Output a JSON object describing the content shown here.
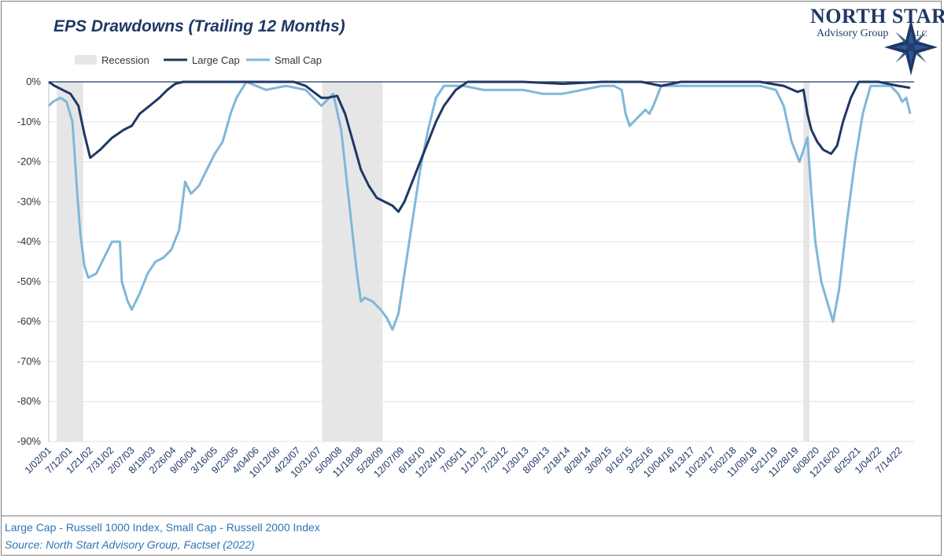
{
  "brand": {
    "logo_name": "NORTH STAR",
    "logo_sub": "Advisory Group",
    "logo_suffix": "LLC",
    "colors": {
      "navy": "#1f3864",
      "light_blue": "#7fb7d9",
      "recession_gray": "#e6e6e6",
      "footnote_blue": "#2e75b6"
    },
    "icon": "compass-star-icon"
  },
  "footnotes": {
    "line1": "Large Cap - Russell 1000 Index, Small Cap - Russell 2000 Index",
    "line2": "Source: North Start Advisory Group, Factset (2022)"
  },
  "chart_data": {
    "type": "line",
    "title": "EPS Drawdowns (Trailing 12 Months)",
    "xlabel": "",
    "ylabel": "",
    "ylim": [
      -90,
      0
    ],
    "yticks": [
      0,
      -10,
      -20,
      -30,
      -40,
      -50,
      -60,
      -70,
      -80,
      -90
    ],
    "ytick_labels": [
      "0%",
      "-10%",
      "-20%",
      "-30%",
      "-40%",
      "-50%",
      "-60%",
      "-70%",
      "-80%",
      "-90%"
    ],
    "xlim": [
      2001.0,
      2022.9
    ],
    "xtick_labels": [
      "1/02/01",
      "7/12/01",
      "1/21/02",
      "7/31/02",
      "2/07/03",
      "8/19/03",
      "2/26/04",
      "9/06/04",
      "3/16/05",
      "9/23/05",
      "4/04/06",
      "10/12/06",
      "4/23/07",
      "10/31/07",
      "5/09/08",
      "11/18/08",
      "5/28/09",
      "12/07/09",
      "6/16/10",
      "12/24/10",
      "7/05/11",
      "1/12/12",
      "7/23/12",
      "1/30/13",
      "8/09/13",
      "2/18/14",
      "8/28/14",
      "3/09/15",
      "9/16/15",
      "3/25/16",
      "10/04/16",
      "4/13/17",
      "10/23/17",
      "5/02/18",
      "11/09/18",
      "5/21/19",
      "11/28/19",
      "6/08/20",
      "12/16/20",
      "6/25/21",
      "1/04/22",
      "7/14/22"
    ],
    "grid": true,
    "legend_position": "top-left",
    "legend": [
      "Recession",
      "Large Cap",
      "Small Cap"
    ],
    "recessions": [
      [
        2001.2,
        2001.87
      ],
      [
        2007.92,
        2009.45
      ],
      [
        2020.1,
        2020.25
      ]
    ],
    "series": [
      {
        "name": "Large Cap",
        "color": "#1f3864",
        "x": [
          2001.0,
          2001.15,
          2001.35,
          2001.55,
          2001.75,
          2001.9,
          2002.05,
          2002.3,
          2002.6,
          2002.9,
          2003.1,
          2003.3,
          2003.55,
          2003.8,
          2004.0,
          2004.2,
          2004.4,
          2005.0,
          2006.0,
          2006.8,
          2007.2,
          2007.5,
          2007.7,
          2007.9,
          2008.05,
          2008.3,
          2008.5,
          2008.7,
          2008.9,
          2009.1,
          2009.3,
          2009.5,
          2009.7,
          2009.85,
          2010.0,
          2010.2,
          2010.4,
          2010.6,
          2010.8,
          2011.0,
          2011.3,
          2011.6,
          2012.0,
          2013.0,
          2014.0,
          2015.0,
          2015.5,
          2016.0,
          2016.5,
          2017.0,
          2018.0,
          2019.0,
          2019.6,
          2019.95,
          2020.1,
          2020.2,
          2020.3,
          2020.45,
          2020.6,
          2020.8,
          2020.95,
          2021.1,
          2021.3,
          2021.5,
          2021.7,
          2022.0,
          2022.5,
          2022.8
        ],
        "y": [
          0,
          -1,
          -2,
          -3,
          -6,
          -13,
          -19,
          -17,
          -14,
          -12,
          -11,
          -8,
          -6,
          -4,
          -2,
          -0.5,
          0,
          0,
          0,
          0,
          0,
          -1,
          -2.5,
          -4,
          -4,
          -3.5,
          -8,
          -15,
          -22,
          -26,
          -29,
          -30,
          -31,
          -32.5,
          -30,
          -25,
          -20,
          -15,
          -10,
          -6,
          -2,
          0,
          0,
          0,
          -0.5,
          0,
          0,
          0,
          -1,
          0,
          0,
          0,
          -1,
          -2.5,
          -2,
          -8,
          -12,
          -15,
          -17,
          -18,
          -16,
          -10,
          -4,
          0,
          0,
          0,
          -1,
          -1.5
        ]
      },
      {
        "name": "Small Cap",
        "color": "#7fb7d9",
        "x": [
          2001.0,
          2001.1,
          2001.3,
          2001.45,
          2001.6,
          2001.72,
          2001.8,
          2001.9,
          2002.0,
          2002.2,
          2002.4,
          2002.6,
          2002.8,
          2002.85,
          2003.0,
          2003.1,
          2003.3,
          2003.5,
          2003.7,
          2003.9,
          2004.1,
          2004.3,
          2004.45,
          2004.6,
          2004.8,
          2005.0,
          2005.2,
          2005.4,
          2005.6,
          2005.75,
          2006.0,
          2006.5,
          2007.0,
          2007.5,
          2007.9,
          2008.0,
          2008.2,
          2008.4,
          2008.6,
          2008.8,
          2008.9,
          2009.0,
          2009.2,
          2009.4,
          2009.55,
          2009.7,
          2009.85,
          2010.0,
          2010.2,
          2010.4,
          2010.6,
          2010.8,
          2011.0,
          2011.2,
          2011.5,
          2012.0,
          2012.5,
          2013.0,
          2013.5,
          2014.0,
          2014.5,
          2015.0,
          2015.3,
          2015.5,
          2015.6,
          2015.7,
          2015.9,
          2016.1,
          2016.2,
          2016.3,
          2016.5,
          2017.0,
          2017.5,
          2018.0,
          2018.5,
          2019.0,
          2019.4,
          2019.6,
          2019.8,
          2020.0,
          2020.1,
          2020.2,
          2020.3,
          2020.4,
          2020.55,
          2020.7,
          2020.85,
          2021.0,
          2021.2,
          2021.4,
          2021.6,
          2021.8,
          2022.0,
          2022.3,
          2022.5,
          2022.6,
          2022.7,
          2022.8
        ],
        "y": [
          -6,
          -5,
          -4,
          -5,
          -10,
          -28,
          -38,
          -46,
          -49,
          -48,
          -44,
          -40,
          -40,
          -50,
          -55,
          -57,
          -53,
          -48,
          -45,
          -44,
          -42,
          -37,
          -25,
          -28,
          -26,
          -22,
          -18,
          -15,
          -8,
          -4,
          0,
          -2,
          -1,
          -2,
          -6,
          -5,
          -3,
          -12,
          -30,
          -48,
          -55,
          -54,
          -55,
          -57,
          -59,
          -62,
          -58,
          -48,
          -35,
          -22,
          -12,
          -4,
          -1,
          -1,
          -1,
          -2,
          -2,
          -2,
          -3,
          -3,
          -2,
          -1,
          -1,
          -2,
          -8,
          -11,
          -9,
          -7,
          -8,
          -6,
          -1,
          -1,
          -1,
          -1,
          -1,
          -1,
          -2,
          -6,
          -15,
          -20,
          -17,
          -14,
          -28,
          -40,
          -50,
          -55,
          -60,
          -52,
          -35,
          -20,
          -8,
          -1,
          -1,
          -1,
          -3,
          -5,
          -4,
          -8
        ]
      }
    ]
  }
}
